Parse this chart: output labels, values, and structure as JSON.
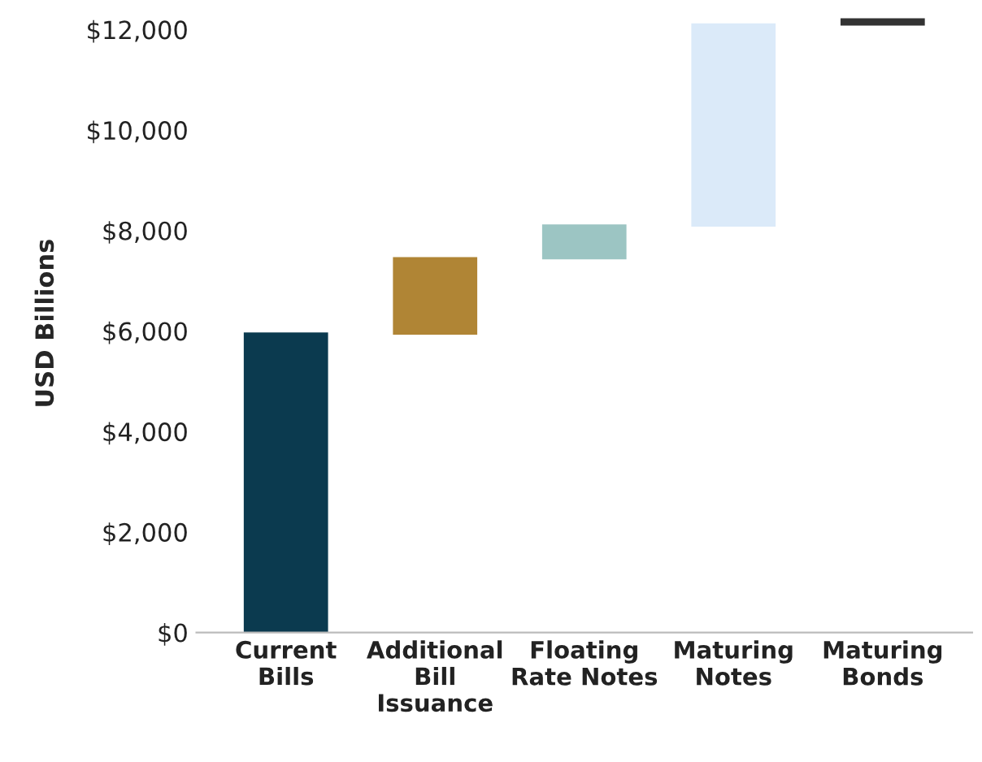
{
  "chart_data": {
    "type": "bar",
    "ylabel": "USD Billions",
    "categories": [
      "Current\nBills",
      "Additional\nBill\nIssuance",
      "Floating\nRate Notes",
      "Maturing\nNotes",
      "Maturing\nBonds"
    ],
    "base": [
      0,
      5950,
      7450,
      8100,
      12100
    ],
    "values": [
      5950,
      1500,
      650,
      4000,
      100
    ],
    "colors": [
      "#0b3a4f",
      "#b08535",
      "#9cc5c3",
      "#dbeaf9",
      "#333333"
    ],
    "ylim": [
      0,
      12300
    ],
    "yticks": [
      {
        "value": 0,
        "label": "$0"
      },
      {
        "value": 2000,
        "label": "$2,000"
      },
      {
        "value": 4000,
        "label": "$4,000"
      },
      {
        "value": 6000,
        "label": "$6,000"
      },
      {
        "value": 8000,
        "label": "$8,000"
      },
      {
        "value": 10000,
        "label": "$10,000"
      },
      {
        "value": 12000,
        "label": "$12,000"
      }
    ],
    "grid": false,
    "legend": false
  }
}
